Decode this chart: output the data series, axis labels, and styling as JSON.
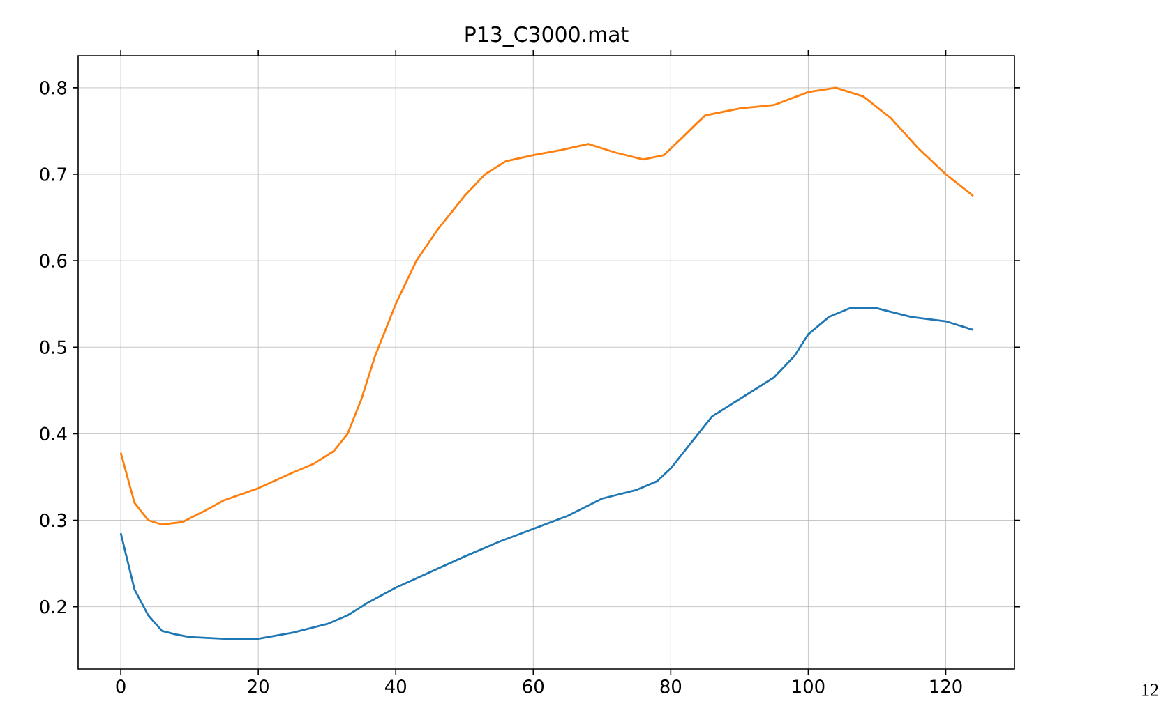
{
  "chart_data": {
    "type": "line",
    "title": "P13_C3000.mat",
    "x": [
      0,
      2,
      4,
      6,
      8,
      10,
      15,
      20,
      25,
      30,
      33,
      36,
      40,
      45,
      50,
      55,
      60,
      65,
      70,
      75,
      78,
      80,
      83,
      86,
      90,
      95,
      98,
      100,
      103,
      106,
      110,
      115,
      120,
      124
    ],
    "series": [
      {
        "color": "#1f77b4",
        "values": [
          0.285,
          0.22,
          0.19,
          0.172,
          0.168,
          0.165,
          0.163,
          0.163,
          0.17,
          0.18,
          0.19,
          0.205,
          0.222,
          0.24,
          0.258,
          0.275,
          0.29,
          0.305,
          0.325,
          0.335,
          0.345,
          0.36,
          0.39,
          0.42,
          0.44,
          0.465,
          0.49,
          0.515,
          0.535,
          0.545,
          0.545,
          0.535,
          0.53,
          0.52
        ]
      },
      {
        "color": "#ff7f0e",
        "x": [
          0,
          2,
          4,
          6,
          9,
          12,
          15,
          20,
          25,
          28,
          31,
          33,
          35,
          37,
          40,
          43,
          46,
          50,
          53,
          56,
          60,
          64,
          68,
          72,
          76,
          79,
          82,
          85,
          90,
          95,
          100,
          104,
          108,
          112,
          116,
          120,
          124
        ],
        "values": [
          0.378,
          0.32,
          0.3,
          0.295,
          0.298,
          0.31,
          0.323,
          0.337,
          0.355,
          0.365,
          0.38,
          0.4,
          0.44,
          0.49,
          0.55,
          0.6,
          0.635,
          0.675,
          0.7,
          0.715,
          0.722,
          0.728,
          0.735,
          0.725,
          0.717,
          0.722,
          0.745,
          0.768,
          0.776,
          0.78,
          0.795,
          0.8,
          0.79,
          0.765,
          0.73,
          0.7,
          0.675
        ]
      }
    ],
    "xlim": [
      -6.2,
      130
    ],
    "ylim": [
      0.128,
      0.837
    ],
    "xticks": [
      0,
      20,
      40,
      60,
      80,
      100,
      120
    ],
    "yticks": [
      0.2,
      0.3,
      0.4,
      0.5,
      0.6,
      0.7,
      0.8
    ],
    "grid": true,
    "annotations": [
      "12"
    ]
  }
}
